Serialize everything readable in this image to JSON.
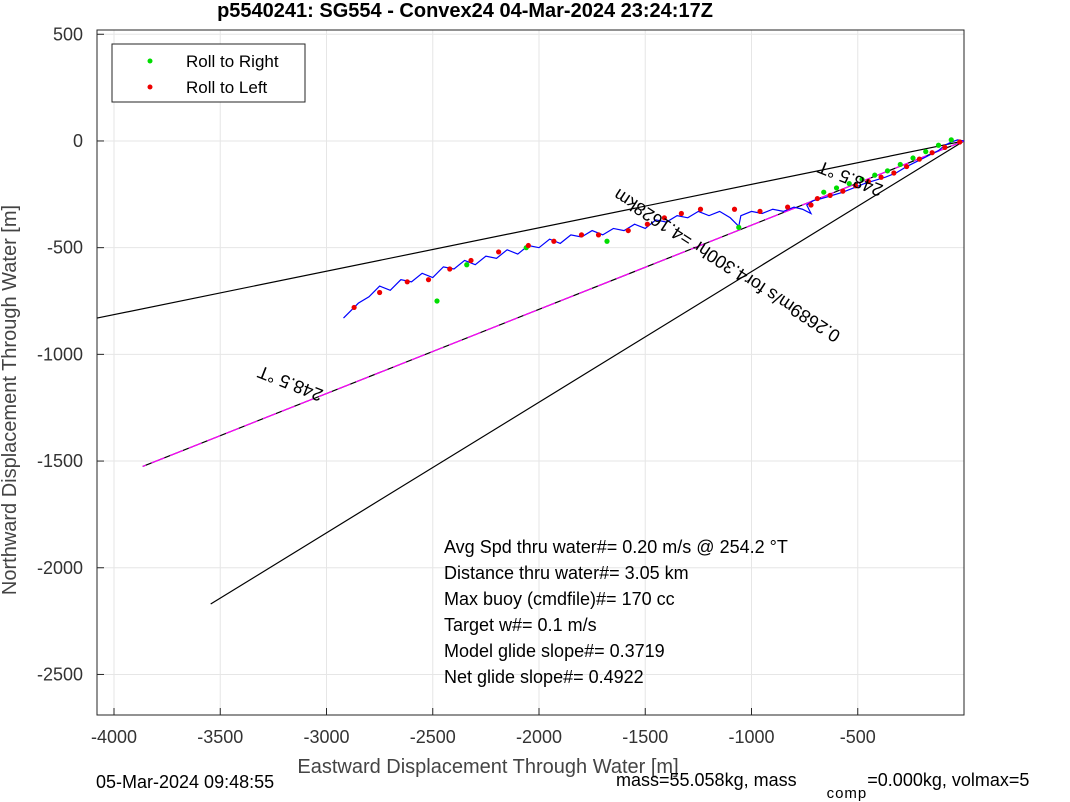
{
  "chart_data": {
    "type": "line",
    "title": "p5540241: SG554 - Convex24 04-Mar-2024 23:24:17Z",
    "xlabel": "Eastward Displacement Through Water [m]",
    "ylabel": "Northward Displacement Through Water [m]",
    "xlim": [
      -4080,
      0
    ],
    "ylim": [
      -2690,
      520
    ],
    "xticks": [
      -4000,
      -3500,
      -3000,
      -2500,
      -2000,
      -1500,
      -1000,
      -500
    ],
    "yticks": [
      500,
      0,
      -500,
      -1000,
      -1500,
      -2000,
      -2500
    ],
    "grid": true,
    "legend_position": "top-left",
    "legend": [
      "Roll to Right",
      "Roll to Left"
    ],
    "colors": {
      "track": "#0000ff",
      "roll_right": "#00dd00",
      "roll_left": "#ee0000",
      "target_line": "#ff00ff",
      "cone_lines": "#000000"
    },
    "cone_lines": [
      {
        "from": [
          0,
          0
        ],
        "to": [
          -4080,
          -830
        ]
      },
      {
        "from": [
          0,
          0
        ],
        "to": [
          -3545,
          -2170
        ]
      },
      {
        "from": [
          0,
          0
        ],
        "to": [
          -3865,
          -1525
        ]
      }
    ],
    "annotations": [
      {
        "text": "248.5 °T",
        "x": -3160,
        "y": -1110,
        "rotate": 201.5
      },
      {
        "text": "248.5 °T",
        "x": -525,
        "y": -150,
        "rotate": 201.5
      },
      {
        "text": "0.2689m/s for4.300hr =4.1628km",
        "x": -1100,
        "y": -560,
        "rotate": 213
      }
    ],
    "stats": [
      "Avg Spd thru water#=  0.20 m/s @ 254.2         °T",
      "Distance thru water#=  3.05 km",
      "Max buoy (cmdfile)#= 170 cc",
      "Target w#= 0.1 m/s",
      "Model glide slope#= 0.3719",
      "Net glide slope#= 0.4922"
    ],
    "track_points": [
      [
        0,
        0
      ],
      [
        -30,
        5
      ],
      [
        -60,
        -5
      ],
      [
        -90,
        -20
      ],
      [
        -120,
        -45
      ],
      [
        -150,
        -60
      ],
      [
        -190,
        -80
      ],
      [
        -230,
        -100
      ],
      [
        -270,
        -120
      ],
      [
        -320,
        -150
      ],
      [
        -370,
        -170
      ],
      [
        -420,
        -185
      ],
      [
        -470,
        -200
      ],
      [
        -520,
        -220
      ],
      [
        -570,
        -240
      ],
      [
        -620,
        -255
      ],
      [
        -670,
        -270
      ],
      [
        -710,
        -280
      ],
      [
        -740,
        -300
      ],
      [
        -720,
        -340
      ],
      [
        -760,
        -320
      ],
      [
        -800,
        -310
      ],
      [
        -850,
        -330
      ],
      [
        -900,
        -320
      ],
      [
        -950,
        -340
      ],
      [
        -1000,
        -330
      ],
      [
        -1050,
        -350
      ],
      [
        -1060,
        -400
      ],
      [
        -1100,
        -360
      ],
      [
        -1150,
        -330
      ],
      [
        -1200,
        -350
      ],
      [
        -1250,
        -330
      ],
      [
        -1300,
        -360
      ],
      [
        -1350,
        -350
      ],
      [
        -1400,
        -380
      ],
      [
        -1450,
        -370
      ],
      [
        -1500,
        -410
      ],
      [
        -1550,
        -390
      ],
      [
        -1600,
        -420
      ],
      [
        -1650,
        -410
      ],
      [
        -1700,
        -440
      ],
      [
        -1750,
        -420
      ],
      [
        -1800,
        -450
      ],
      [
        -1850,
        -440
      ],
      [
        -1900,
        -480
      ],
      [
        -1950,
        -460
      ],
      [
        -2000,
        -500
      ],
      [
        -2050,
        -490
      ],
      [
        -2100,
        -530
      ],
      [
        -2150,
        -510
      ],
      [
        -2200,
        -550
      ],
      [
        -2250,
        -540
      ],
      [
        -2300,
        -580
      ],
      [
        -2350,
        -560
      ],
      [
        -2400,
        -600
      ],
      [
        -2450,
        -590
      ],
      [
        -2500,
        -640
      ],
      [
        -2550,
        -620
      ],
      [
        -2600,
        -660
      ],
      [
        -2650,
        -650
      ],
      [
        -2700,
        -700
      ],
      [
        -2750,
        -680
      ],
      [
        -2800,
        -730
      ],
      [
        -2850,
        -760
      ],
      [
        -2880,
        -790
      ],
      [
        -2900,
        -810
      ],
      [
        -2920,
        -830
      ]
    ],
    "roll_right_points": [
      [
        -60,
        5
      ],
      [
        -120,
        -20
      ],
      [
        -180,
        -50
      ],
      [
        -240,
        -80
      ],
      [
        -300,
        -110
      ],
      [
        -360,
        -140
      ],
      [
        -420,
        -160
      ],
      [
        -480,
        -180
      ],
      [
        -540,
        -200
      ],
      [
        -600,
        -220
      ],
      [
        -660,
        -240
      ],
      [
        -1060,
        -405
      ],
      [
        -1680,
        -470
      ],
      [
        -2060,
        -500
      ],
      [
        -2340,
        -580
      ],
      [
        -2480,
        -750
      ]
    ],
    "roll_left_points": [
      [
        -20,
        -5
      ],
      [
        -90,
        -30
      ],
      [
        -150,
        -55
      ],
      [
        -210,
        -85
      ],
      [
        -270,
        -120
      ],
      [
        -330,
        -150
      ],
      [
        -390,
        -170
      ],
      [
        -450,
        -190
      ],
      [
        -510,
        -210
      ],
      [
        -570,
        -235
      ],
      [
        -630,
        -255
      ],
      [
        -690,
        -270
      ],
      [
        -720,
        -300
      ],
      [
        -830,
        -310
      ],
      [
        -960,
        -330
      ],
      [
        -1080,
        -320
      ],
      [
        -1240,
        -320
      ],
      [
        -1330,
        -340
      ],
      [
        -1410,
        -360
      ],
      [
        -1490,
        -390
      ],
      [
        -1580,
        -420
      ],
      [
        -1720,
        -440
      ],
      [
        -1800,
        -440
      ],
      [
        -1930,
        -470
      ],
      [
        -2050,
        -490
      ],
      [
        -2190,
        -520
      ],
      [
        -2320,
        -560
      ],
      [
        -2420,
        -600
      ],
      [
        -2520,
        -650
      ],
      [
        -2620,
        -660
      ],
      [
        -2750,
        -710
      ],
      [
        -2870,
        -780
      ]
    ]
  },
  "footer": {
    "date": "05-Mar-2024 09:48:55",
    "mass_prefix": "mass=55.058kg, mass",
    "comp_sub": "comp",
    "mass_suffix": "=0.000kg, volmax=5"
  }
}
